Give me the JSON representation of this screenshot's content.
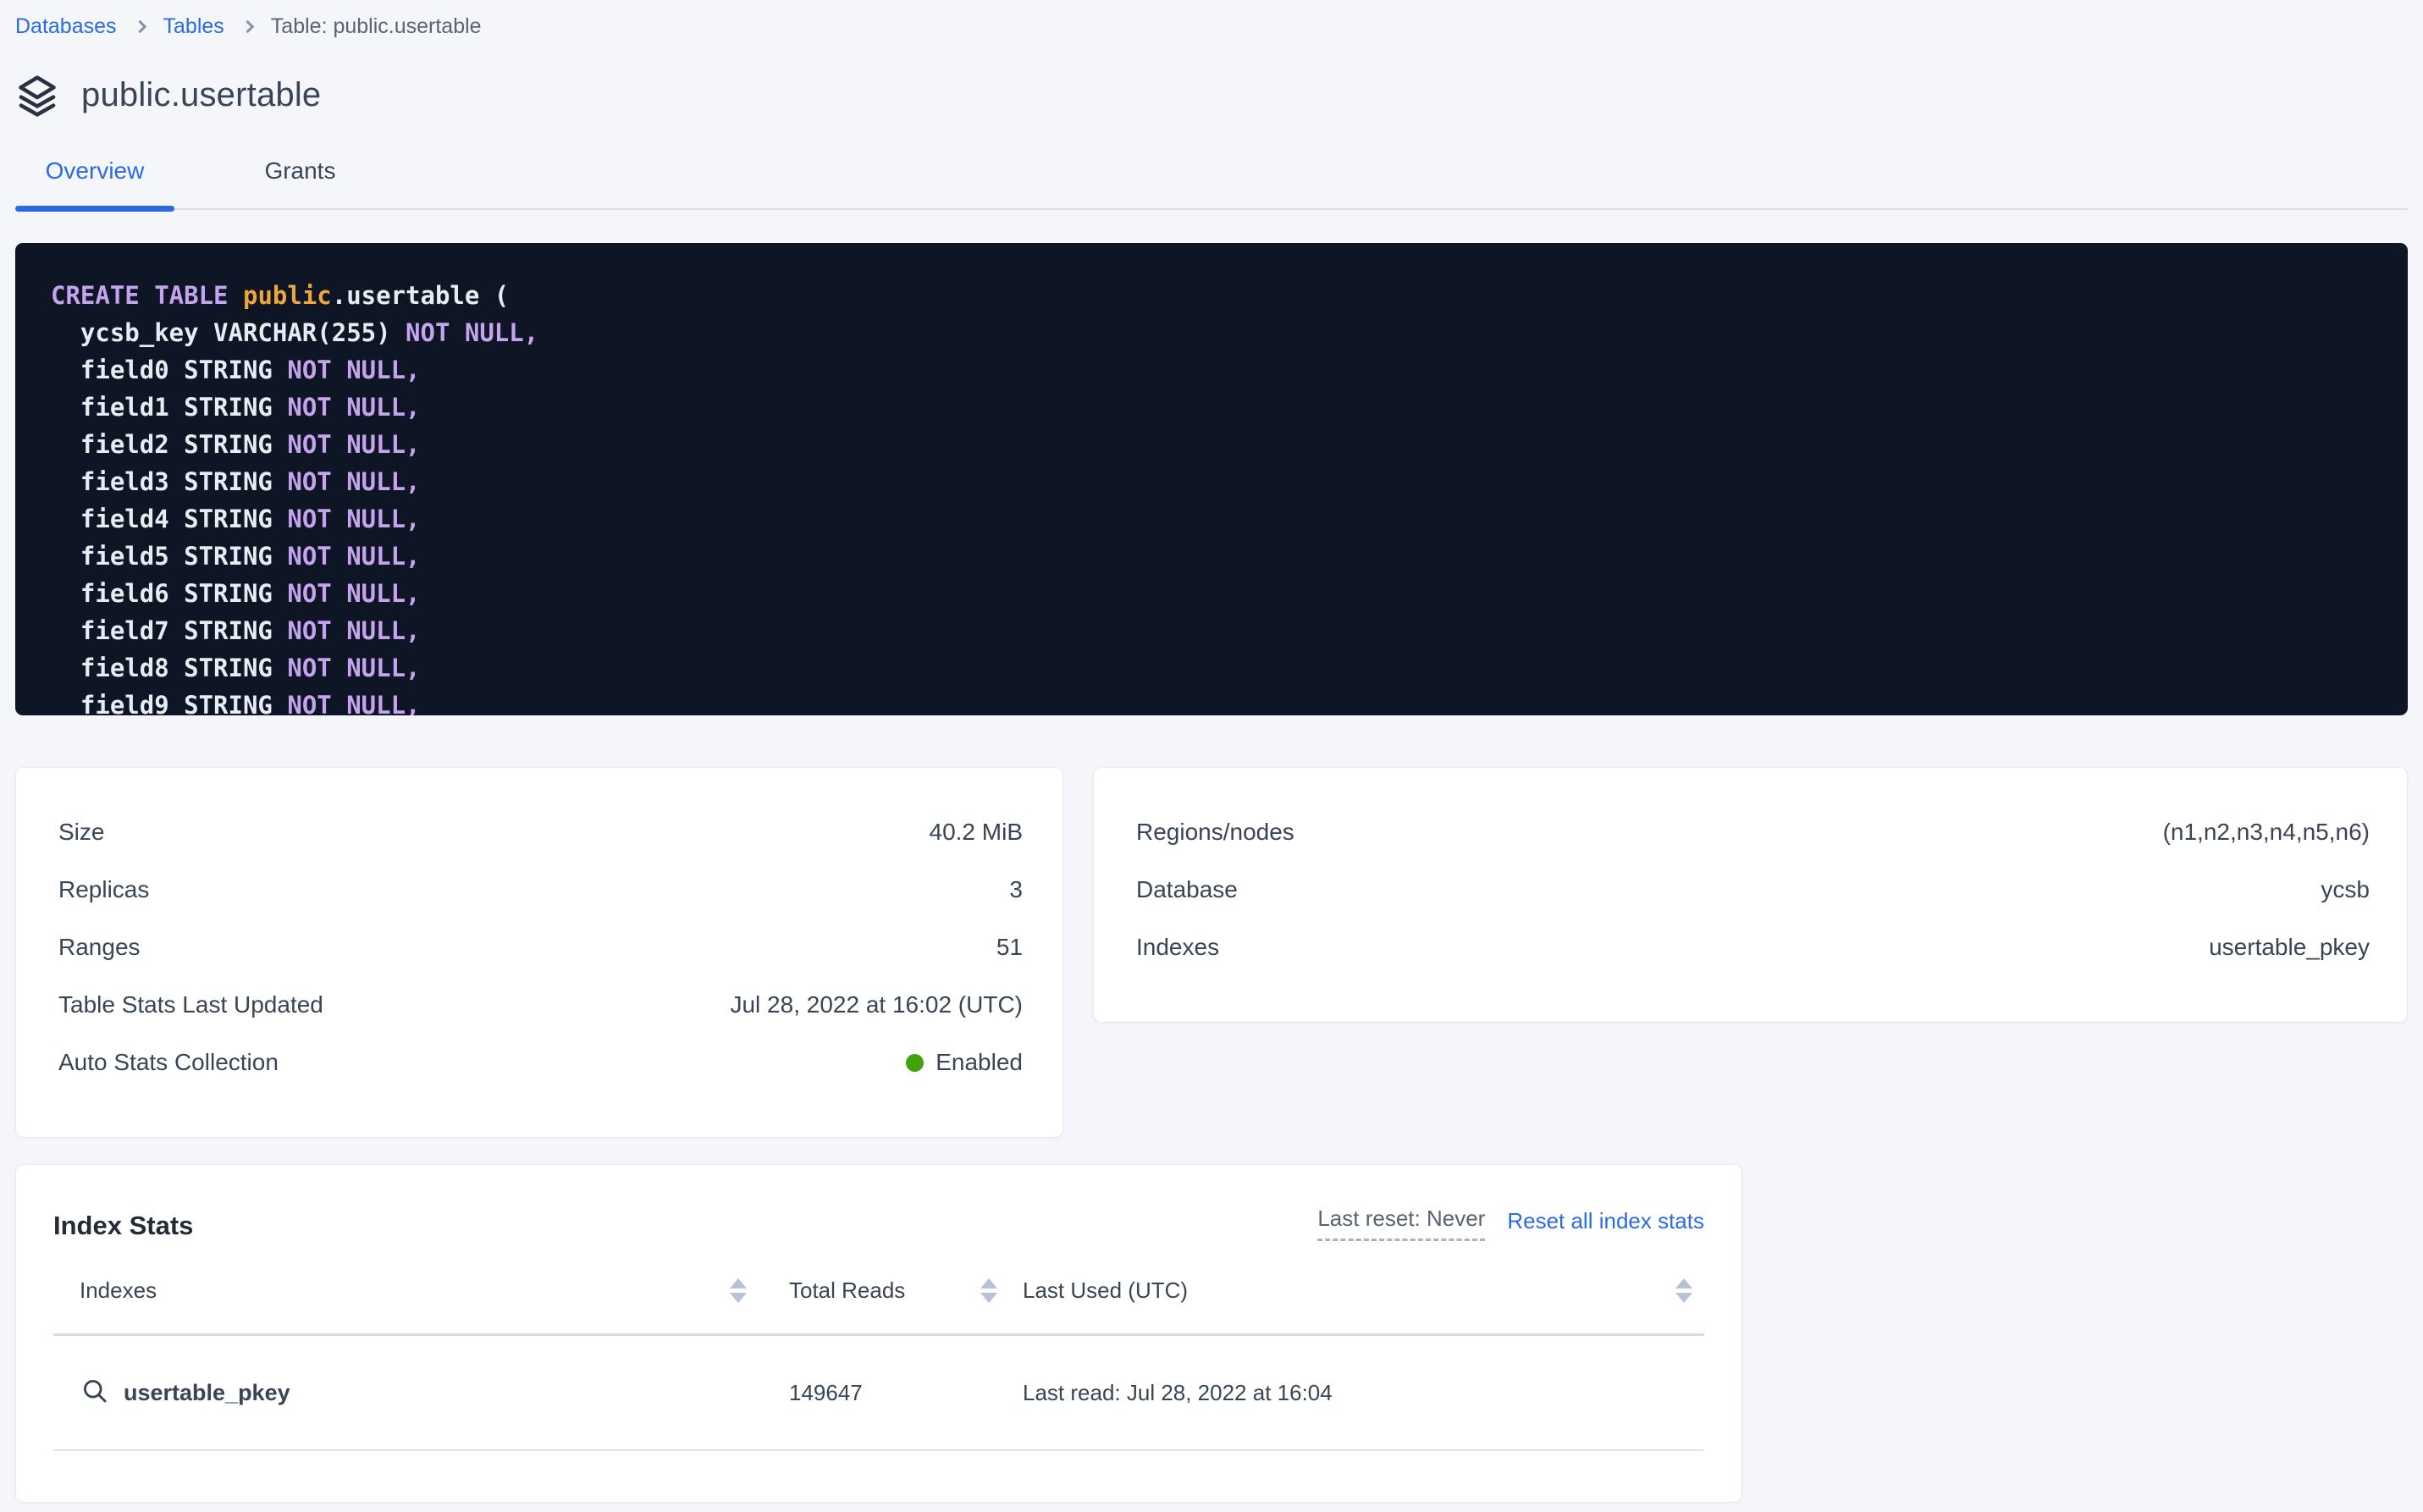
{
  "breadcrumb": {
    "items": [
      {
        "label": "Databases"
      },
      {
        "label": "Tables"
      },
      {
        "label": "Table: public.usertable"
      }
    ]
  },
  "header": {
    "title": "public.usertable",
    "icon": "layers-stack-icon"
  },
  "tabs": [
    {
      "label": "Overview",
      "active": true
    },
    {
      "label": "Grants",
      "active": false
    }
  ],
  "sql": {
    "lines": [
      [
        [
          "kw",
          "CREATE TABLE "
        ],
        [
          "fn",
          "public"
        ],
        [
          "pl",
          ".usertable ("
        ]
      ],
      [
        [
          "pl",
          "  ycsb_key VARCHAR(255) "
        ],
        [
          "kw",
          "NOT NULL,"
        ]
      ],
      [
        [
          "pl",
          "  field0 STRING "
        ],
        [
          "kw",
          "NOT NULL,"
        ]
      ],
      [
        [
          "pl",
          "  field1 STRING "
        ],
        [
          "kw",
          "NOT NULL,"
        ]
      ],
      [
        [
          "pl",
          "  field2 STRING "
        ],
        [
          "kw",
          "NOT NULL,"
        ]
      ],
      [
        [
          "pl",
          "  field3 STRING "
        ],
        [
          "kw",
          "NOT NULL,"
        ]
      ],
      [
        [
          "pl",
          "  field4 STRING "
        ],
        [
          "kw",
          "NOT NULL,"
        ]
      ],
      [
        [
          "pl",
          "  field5 STRING "
        ],
        [
          "kw",
          "NOT NULL,"
        ]
      ],
      [
        [
          "pl",
          "  field6 STRING "
        ],
        [
          "kw",
          "NOT NULL,"
        ]
      ],
      [
        [
          "pl",
          "  field7 STRING "
        ],
        [
          "kw",
          "NOT NULL,"
        ]
      ],
      [
        [
          "pl",
          "  field8 STRING "
        ],
        [
          "kw",
          "NOT NULL,"
        ]
      ],
      [
        [
          "pl",
          "  field9 STRING "
        ],
        [
          "kw",
          "NOT NULL,"
        ]
      ]
    ]
  },
  "details_left": {
    "rows": [
      {
        "label": "Size",
        "value": "40.2 MiB"
      },
      {
        "label": "Replicas",
        "value": "3"
      },
      {
        "label": "Ranges",
        "value": "51"
      },
      {
        "label": "Table Stats Last Updated",
        "value": "Jul 28, 2022 at 16:02 (UTC)"
      },
      {
        "label": "Auto Stats Collection",
        "value": "Enabled",
        "status": "enabled"
      }
    ]
  },
  "details_right": {
    "rows": [
      {
        "label": "Regions/nodes",
        "value": "(n1,n2,n3,n4,n5,n6)"
      },
      {
        "label": "Database",
        "value": "ycsb"
      },
      {
        "label": "Indexes",
        "value": "usertable_pkey"
      }
    ]
  },
  "index_stats": {
    "title": "Index Stats",
    "last_reset": "Last reset: Never",
    "reset_link": "Reset all index stats",
    "columns": [
      "Indexes",
      "Total Reads",
      "Last Used (UTC)"
    ],
    "rows": [
      {
        "index": "usertable_pkey",
        "total_reads": "149647",
        "last_used": "Last read: Jul 28, 2022 at 16:04"
      }
    ]
  },
  "colors": {
    "accent_blue": "#2b6be2",
    "status_green": "#41a30b",
    "code_background": "#0e1525",
    "code_keyword": "#c5a3ef",
    "code_schema": "#f0a43c",
    "code_text": "#e7ebf2",
    "page_background": "#f4f6fa"
  }
}
